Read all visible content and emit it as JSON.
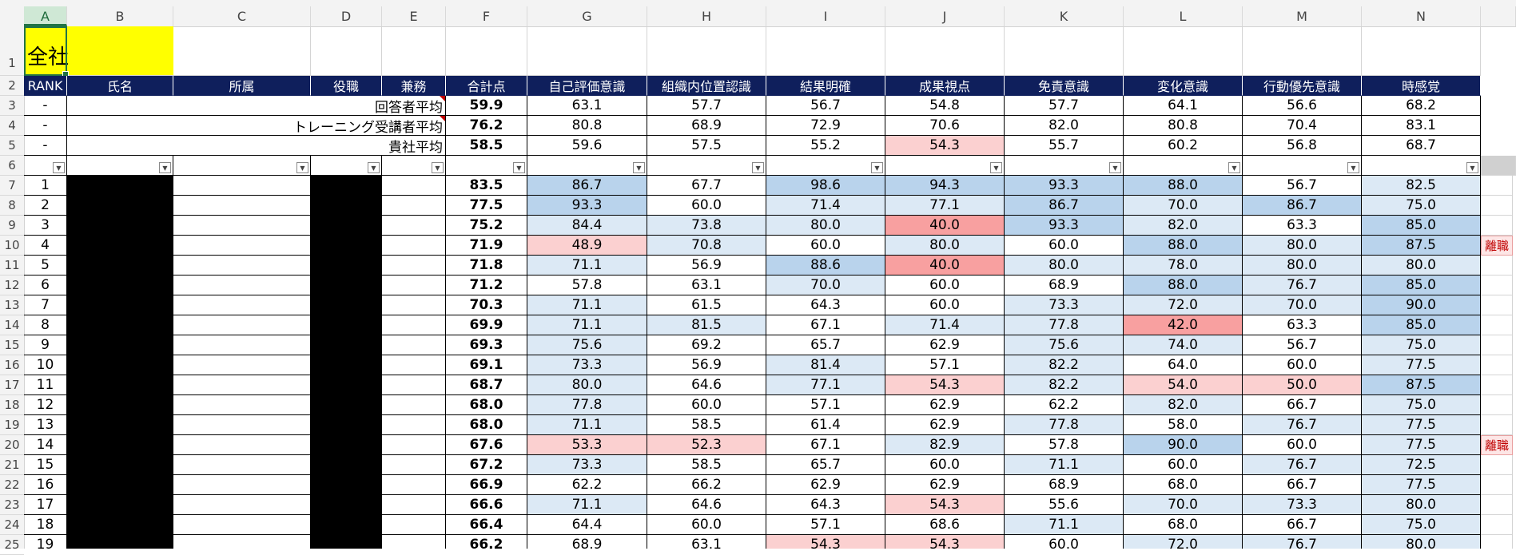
{
  "columns": [
    "A",
    "B",
    "C",
    "D",
    "E",
    "F",
    "G",
    "H",
    "I",
    "J",
    "K",
    "L",
    "M",
    "N"
  ],
  "selected_column": "A",
  "title_cell": "全社",
  "headers": [
    "RANK",
    "氏名",
    "所属",
    "役職",
    "兼務",
    "合計点",
    "自己評価意識",
    "組織内位置認識",
    "結果明確",
    "成果視点",
    "免責意識",
    "変化意識",
    "行動優先意識",
    "時感覚"
  ],
  "summary_rows": [
    {
      "row": "3",
      "rank": "-",
      "label": "回答者平均",
      "total": "59.9",
      "scores": [
        "63.1",
        "57.7",
        "56.7",
        "54.8",
        "57.7",
        "64.1",
        "56.6",
        "68.2"
      ],
      "comment": true
    },
    {
      "row": "4",
      "rank": "-",
      "label": "トレーニング受講者平均",
      "total": "76.2",
      "scores": [
        "80.8",
        "68.9",
        "72.9",
        "70.6",
        "82.0",
        "80.8",
        "70.4",
        "83.1"
      ],
      "comment": true
    },
    {
      "row": "5",
      "rank": "-",
      "label": "貴社平均",
      "total": "58.5",
      "scores": [
        "59.6",
        "57.5",
        "55.2",
        "54.3",
        "55.7",
        "60.2",
        "56.8",
        "68.7"
      ],
      "comment": false
    }
  ],
  "filter_row": "6",
  "data_rows": [
    {
      "row": "7",
      "rank": "1",
      "total": "83.5",
      "scores": [
        "86.7",
        "67.7",
        "98.6",
        "94.3",
        "93.3",
        "88.0",
        "56.7",
        "82.5"
      ],
      "tag": ""
    },
    {
      "row": "8",
      "rank": "2",
      "total": "77.5",
      "scores": [
        "93.3",
        "60.0",
        "71.4",
        "77.1",
        "86.7",
        "70.0",
        "86.7",
        "75.0"
      ],
      "tag": ""
    },
    {
      "row": "9",
      "rank": "3",
      "total": "75.2",
      "scores": [
        "84.4",
        "73.8",
        "80.0",
        "40.0",
        "93.3",
        "82.0",
        "63.3",
        "85.0"
      ],
      "tag": ""
    },
    {
      "row": "10",
      "rank": "4",
      "total": "71.9",
      "scores": [
        "48.9",
        "70.8",
        "60.0",
        "80.0",
        "60.0",
        "88.0",
        "80.0",
        "87.5"
      ],
      "tag": "離職"
    },
    {
      "row": "11",
      "rank": "5",
      "total": "71.8",
      "scores": [
        "71.1",
        "56.9",
        "88.6",
        "40.0",
        "80.0",
        "78.0",
        "80.0",
        "80.0"
      ],
      "tag": ""
    },
    {
      "row": "12",
      "rank": "6",
      "total": "71.2",
      "scores": [
        "57.8",
        "63.1",
        "70.0",
        "60.0",
        "68.9",
        "88.0",
        "76.7",
        "85.0"
      ],
      "tag": ""
    },
    {
      "row": "13",
      "rank": "7",
      "total": "70.3",
      "scores": [
        "71.1",
        "61.5",
        "64.3",
        "60.0",
        "73.3",
        "72.0",
        "70.0",
        "90.0"
      ],
      "tag": ""
    },
    {
      "row": "14",
      "rank": "8",
      "total": "69.9",
      "scores": [
        "71.1",
        "81.5",
        "67.1",
        "71.4",
        "77.8",
        "42.0",
        "63.3",
        "85.0"
      ],
      "tag": ""
    },
    {
      "row": "15",
      "rank": "9",
      "total": "69.3",
      "scores": [
        "75.6",
        "69.2",
        "65.7",
        "62.9",
        "75.6",
        "74.0",
        "56.7",
        "75.0"
      ],
      "tag": ""
    },
    {
      "row": "16",
      "rank": "10",
      "total": "69.1",
      "scores": [
        "73.3",
        "56.9",
        "81.4",
        "57.1",
        "82.2",
        "64.0",
        "60.0",
        "77.5"
      ],
      "tag": ""
    },
    {
      "row": "17",
      "rank": "11",
      "total": "68.7",
      "scores": [
        "80.0",
        "64.6",
        "77.1",
        "54.3",
        "82.2",
        "54.0",
        "50.0",
        "87.5"
      ],
      "tag": ""
    },
    {
      "row": "18",
      "rank": "12",
      "total": "68.0",
      "scores": [
        "77.8",
        "60.0",
        "57.1",
        "62.9",
        "62.2",
        "82.0",
        "66.7",
        "75.0"
      ],
      "tag": ""
    },
    {
      "row": "19",
      "rank": "13",
      "total": "68.0",
      "scores": [
        "71.1",
        "58.5",
        "61.4",
        "62.9",
        "77.8",
        "58.0",
        "76.7",
        "77.5"
      ],
      "tag": ""
    },
    {
      "row": "20",
      "rank": "14",
      "total": "67.6",
      "scores": [
        "53.3",
        "52.3",
        "67.1",
        "82.9",
        "57.8",
        "90.0",
        "60.0",
        "77.5"
      ],
      "tag": "離職"
    },
    {
      "row": "21",
      "rank": "15",
      "total": "67.2",
      "scores": [
        "73.3",
        "58.5",
        "65.7",
        "60.0",
        "71.1",
        "60.0",
        "76.7",
        "72.5"
      ],
      "tag": ""
    },
    {
      "row": "22",
      "rank": "16",
      "total": "66.9",
      "scores": [
        "62.2",
        "66.2",
        "62.9",
        "62.9",
        "68.9",
        "68.0",
        "66.7",
        "77.5"
      ],
      "tag": ""
    },
    {
      "row": "23",
      "rank": "17",
      "total": "66.6",
      "scores": [
        "71.1",
        "64.6",
        "64.3",
        "54.3",
        "55.6",
        "70.0",
        "73.3",
        "80.0"
      ],
      "tag": ""
    },
    {
      "row": "24",
      "rank": "18",
      "total": "66.4",
      "scores": [
        "64.4",
        "60.0",
        "57.1",
        "68.6",
        "71.1",
        "68.0",
        "66.7",
        "75.0"
      ],
      "tag": ""
    },
    {
      "row": "25",
      "rank": "19",
      "total": "66.2",
      "scores": [
        "68.9",
        "63.1",
        "54.3",
        "54.3",
        "60.0",
        "72.0",
        "76.7",
        "80.0"
      ],
      "tag": ""
    }
  ],
  "colors": {
    "header_bg": "#0f1f5c",
    "title_bg": "#ffff00",
    "pink_dark": "#f8a0a0",
    "pink_light": "#fbd0d0",
    "blue_light": "#dce9f5",
    "blue_mid": "#b9d3ec",
    "redacted": "#000000",
    "tag_red": "#c00000"
  }
}
